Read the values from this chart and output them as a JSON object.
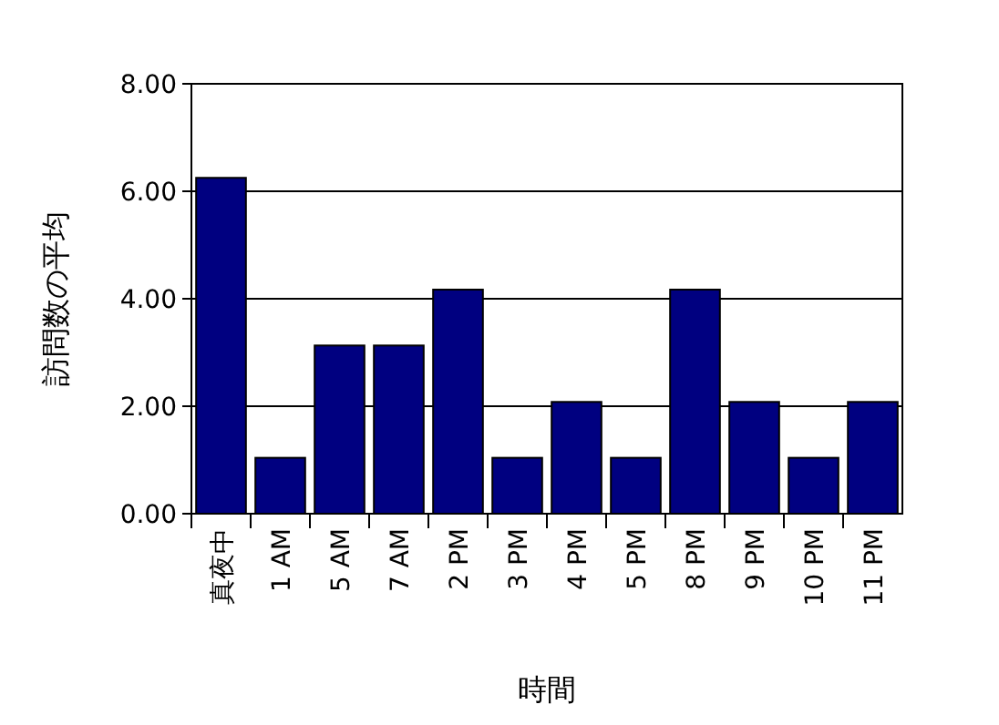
{
  "chart_data": {
    "type": "bar",
    "xlabel": "時間",
    "ylabel": "訪問数の平均",
    "categories": [
      "真夜中",
      "1 AM",
      "5 AM",
      "7 AM",
      "2 PM",
      "3 PM",
      "4 PM",
      "5 PM",
      "8 PM",
      "9 PM",
      "10 PM",
      "11 PM"
    ],
    "values": [
      6.25,
      1.04,
      3.13,
      3.13,
      4.17,
      1.04,
      2.08,
      1.04,
      4.17,
      2.08,
      1.04,
      2.08
    ],
    "color": "#000080",
    "ylim": [
      0,
      8
    ],
    "yticks": [
      {
        "value": 0,
        "label": "0.00"
      },
      {
        "value": 2,
        "label": "2.00"
      },
      {
        "value": 4,
        "label": "4.00"
      },
      {
        "value": 6,
        "label": "6.00"
      },
      {
        "value": 8,
        "label": "8.00"
      }
    ],
    "grid": "y"
  }
}
